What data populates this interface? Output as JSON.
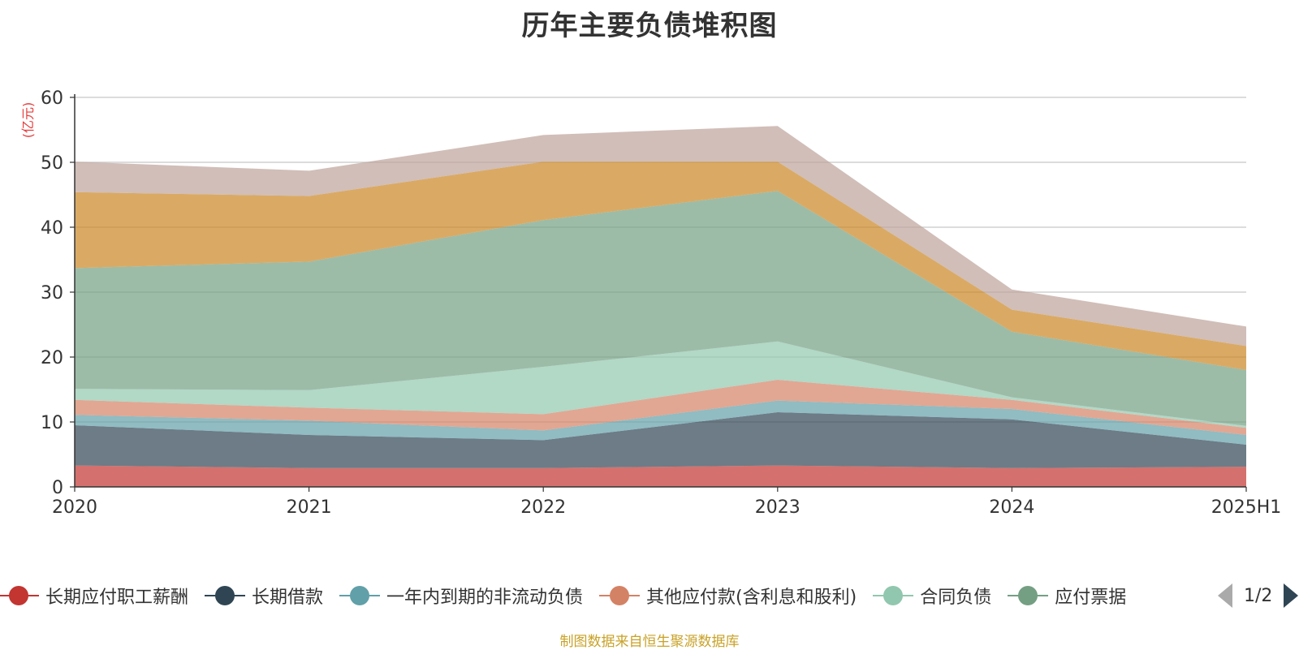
{
  "chart_data": {
    "type": "area",
    "stacked": true,
    "title": "历年主要负债堆积图",
    "unit": "(亿元)",
    "xlabel": "",
    "ylabel": "",
    "categories": [
      "2020",
      "2021",
      "2022",
      "2023",
      "2024",
      "2025H1"
    ],
    "ylim": [
      0,
      60
    ],
    "yticks": [
      0,
      10,
      20,
      30,
      40,
      50,
      60
    ],
    "grid": true,
    "legend_position": "bottom",
    "series": [
      {
        "name": "长期应付职工薪酬",
        "color": "#c23531",
        "values": [
          3.3,
          2.9,
          2.9,
          3.3,
          2.9,
          3.1
        ]
      },
      {
        "name": "长期借款",
        "color": "#2f4554",
        "values": [
          6.2,
          5.1,
          4.3,
          8.2,
          7.5,
          3.4
        ]
      },
      {
        "name": "一年内到期的非流动负债",
        "color": "#61a0a8",
        "values": [
          1.6,
          2.2,
          1.5,
          1.8,
          1.6,
          1.5
        ]
      },
      {
        "name": "其他应付款(含利息和股利)",
        "color": "#d48265",
        "values": [
          2.3,
          2.0,
          2.5,
          3.2,
          1.4,
          1.1
        ]
      },
      {
        "name": "合同负债",
        "color": "#91c7ae",
        "values": [
          1.7,
          2.7,
          7.3,
          5.9,
          0.4,
          0.3
        ]
      },
      {
        "name": "应付票据",
        "color": "#749f83",
        "values": [
          18.6,
          19.8,
          22.6,
          23.2,
          10.1,
          8.6
        ]
      },
      {
        "name": "",
        "color": "#ca8622",
        "values": [
          11.7,
          10.1,
          9.0,
          4.5,
          3.4,
          3.7
        ]
      },
      {
        "name": "",
        "color": "#bda29a",
        "values": [
          4.7,
          3.9,
          4.1,
          5.5,
          3.1,
          3.0
        ]
      }
    ]
  },
  "legend": {
    "visible_items": [
      "长期应付职工薪酬",
      "长期借款",
      "一年内到期的非流动负债",
      "其他应付款(含利息和股利)",
      "合同负债",
      "应付票据"
    ],
    "page_indicator": "1/2",
    "prev_icon": "triangle-left-icon",
    "next_icon": "triangle-right-icon"
  },
  "footer": {
    "source_note": "制图数据来自恒生聚源数据库"
  }
}
